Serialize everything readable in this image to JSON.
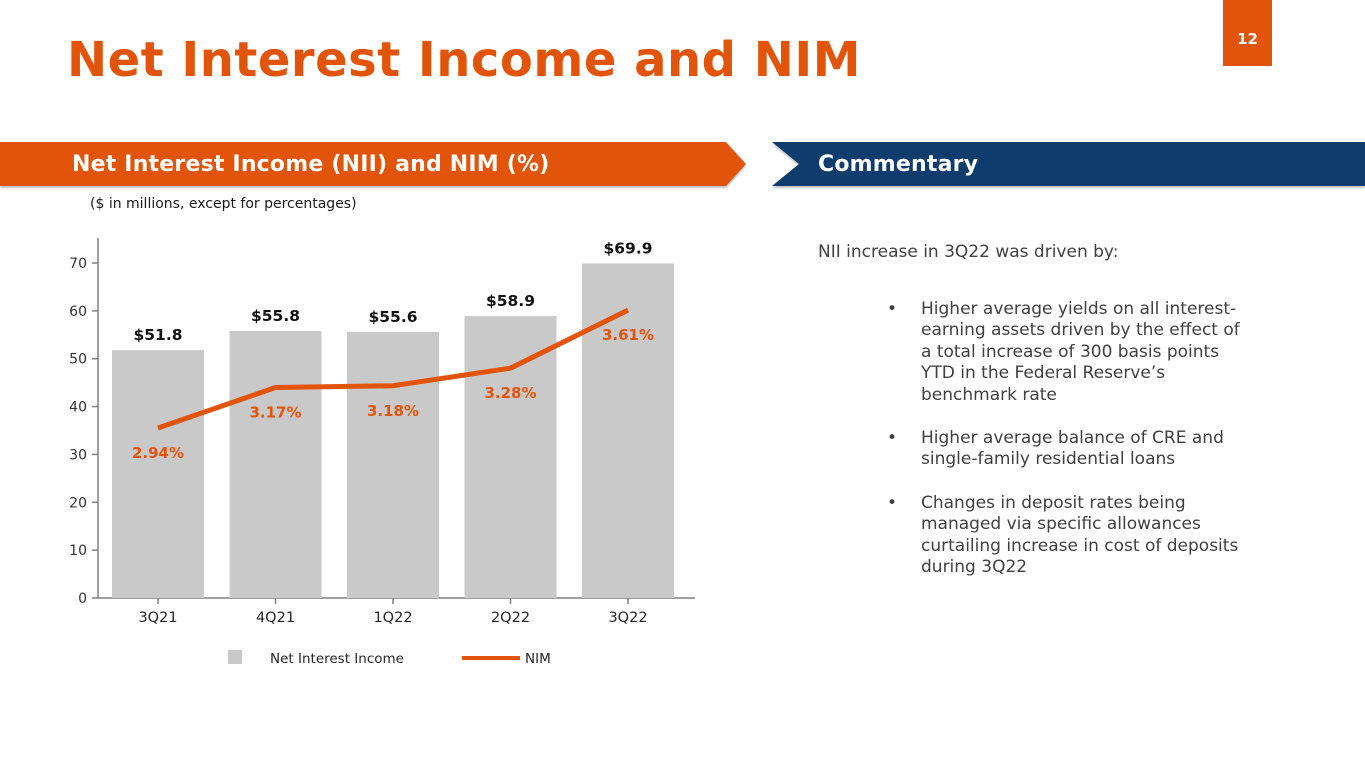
{
  "slide": {
    "title": "Net Interest Income and NIM",
    "page_number": "12"
  },
  "panels": {
    "chart_banner": "Net Interest Income (NII) and NIM (%)",
    "commentary_banner": "Commentary",
    "chart_note": "($ in millions, except for percentages)"
  },
  "commentary": {
    "intro": "NII increase in 3Q22 was driven by:",
    "bullets": [
      "Higher average yields on all interest-\nearning assets driven by the effect of\na total increase of 300 basis points\nYTD in the Federal Reserve’s\nbenchmark rate",
      "Higher average balance of CRE and\nsingle-family residential loans",
      "Changes in deposit rates being\nmanaged via specific allowances\ncurtailing increase in cost of deposits\nduring 3Q22"
    ]
  },
  "colors": {
    "accent_orange": "#E2540A",
    "navy": "#0E3D6D",
    "bar_gray": "#C9C9C9",
    "axis_gray": "#808080"
  },
  "chart_data": {
    "type": "bar",
    "subtype": "bar+line combo",
    "title": "Net Interest Income (NII) and NIM (%)",
    "note": "($ in millions, except for percentages)",
    "categories": [
      "3Q21",
      "4Q21",
      "1Q22",
      "2Q22",
      "3Q22"
    ],
    "series": [
      {
        "name": "Net Interest Income",
        "type": "bar",
        "values": [
          51.8,
          55.8,
          55.6,
          58.9,
          69.9
        ],
        "labels": [
          "$51.8",
          "$55.8",
          "$55.6",
          "$58.9",
          "$69.9"
        ],
        "color": "#C9C9C9"
      },
      {
        "name": "NIM",
        "type": "line",
        "values": [
          2.94,
          3.17,
          3.18,
          3.28,
          3.61
        ],
        "labels": [
          "2.94%",
          "3.17%",
          "3.18%",
          "3.28%",
          "3.61%"
        ],
        "color": "#E2540A"
      }
    ],
    "y_axis": {
      "min": 0,
      "max": 70,
      "step": 10,
      "ticks": [
        0,
        10,
        20,
        30,
        40,
        50,
        60,
        70
      ]
    },
    "grid": false,
    "legend_position": "bottom",
    "legend": [
      "Net Interest Income",
      "NIM"
    ]
  }
}
